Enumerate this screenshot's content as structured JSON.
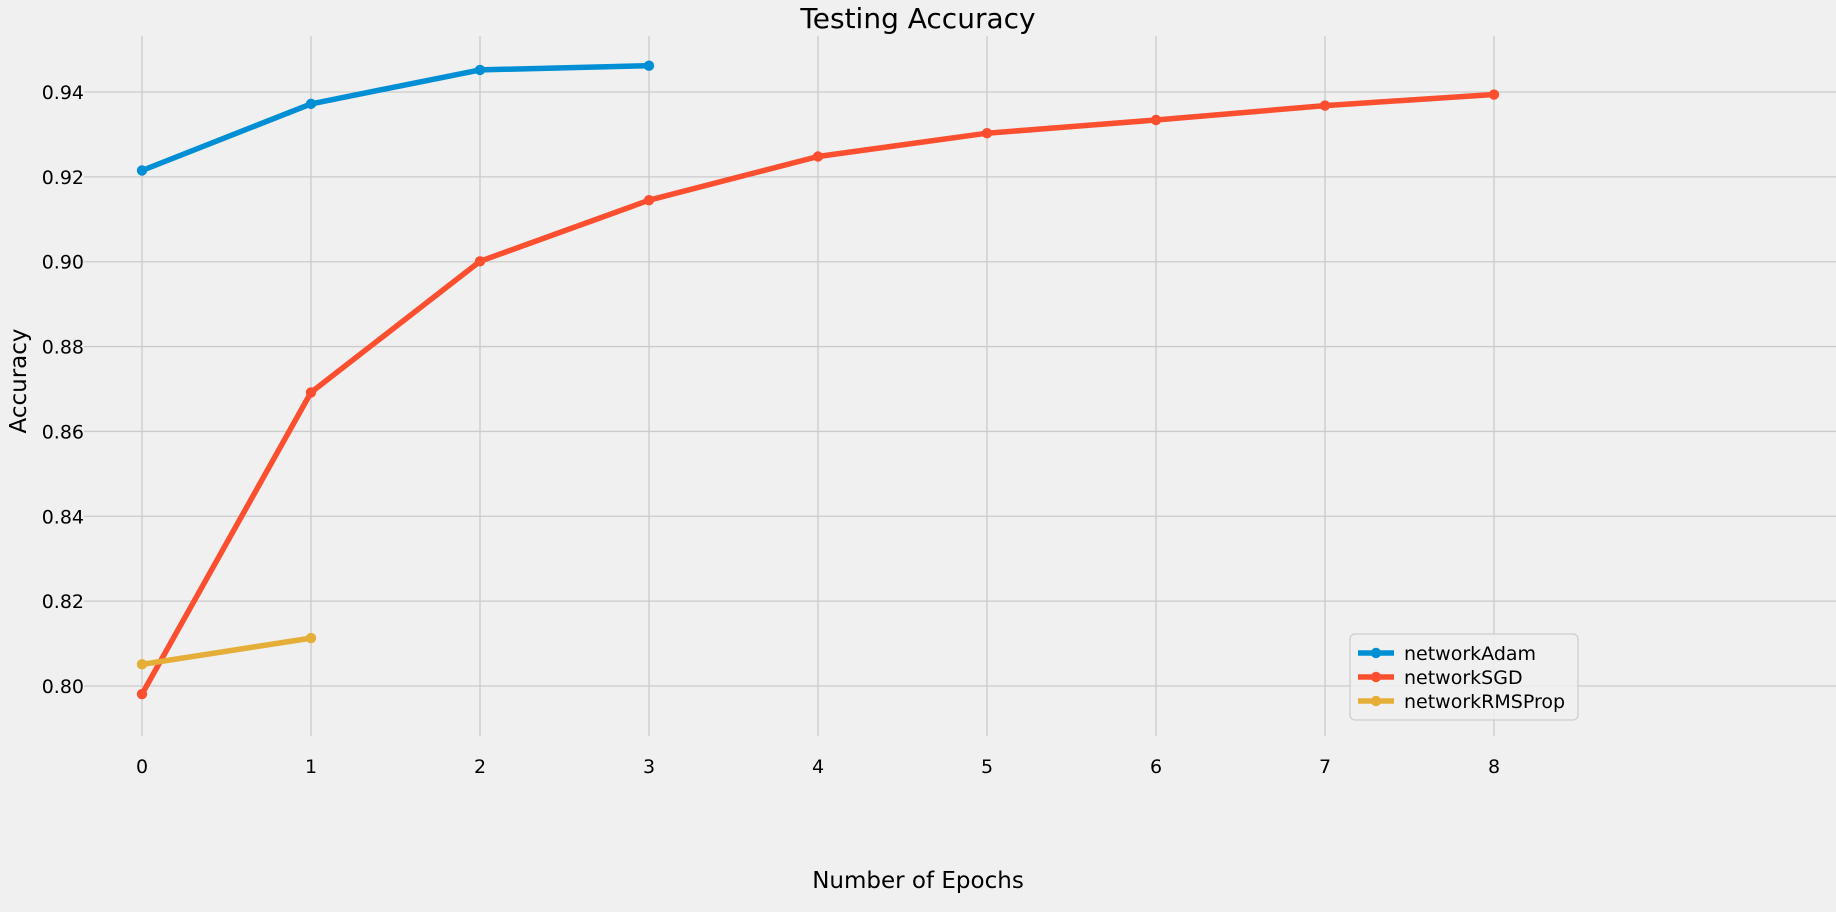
{
  "chart_data": {
    "type": "line",
    "title": "Testing Accuracy",
    "xlabel": "Number of Epochs",
    "ylabel": "Accuracy",
    "xlim": [
      -0.5,
      8.4
    ],
    "ylim": [
      0.791,
      0.953
    ],
    "x_ticks": [
      "0",
      "1",
      "2",
      "3",
      "4",
      "5",
      "6",
      "7",
      "8"
    ],
    "y_ticks": [
      "0.80",
      "0.82",
      "0.84",
      "0.86",
      "0.88",
      "0.90",
      "0.92",
      "0.94"
    ],
    "grid": true,
    "legend_position": "lower right",
    "series": [
      {
        "name": "networkAdam",
        "color": "#008fd5",
        "x": [
          0,
          1,
          2,
          3
        ],
        "y": [
          0.9215,
          0.9372,
          0.9452,
          0.9462
        ]
      },
      {
        "name": "networkSGD",
        "color": "#fc4f30",
        "x": [
          0,
          1,
          2,
          3,
          4,
          5,
          6,
          7,
          8
        ],
        "y": [
          0.7981,
          0.8692,
          0.9001,
          0.9145,
          0.9248,
          0.9303,
          0.9334,
          0.9368,
          0.9394
        ]
      },
      {
        "name": "networkRMSProp",
        "color": "#e5ae38",
        "x": [
          0,
          1
        ],
        "y": [
          0.8051,
          0.8113
        ]
      }
    ]
  }
}
